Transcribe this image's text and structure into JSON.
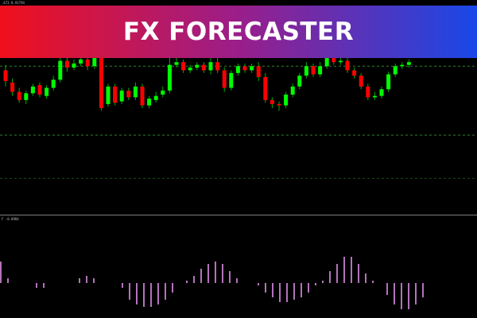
{
  "banner": {
    "title": "FX FORECASTER",
    "gradient_start": "#f0101c",
    "gradient_mid": "#9a1e8a",
    "gradient_end": "#1848e8"
  },
  "chart": {
    "header": ".673 0.91794",
    "bull_color": "#00ff00",
    "bear_color": "#ff0000",
    "wick_color": "#00b000",
    "level_lines_color": "#3aa63a",
    "candles": [
      {
        "o": 28,
        "c": 20,
        "h": 32,
        "l": 16
      },
      {
        "o": 19,
        "c": 12,
        "h": 22,
        "l": 9
      },
      {
        "o": 12,
        "c": 6,
        "h": 15,
        "l": 4
      },
      {
        "o": 6,
        "c": 11,
        "h": 13,
        "l": 3
      },
      {
        "o": 11,
        "c": 16,
        "h": 18,
        "l": 9
      },
      {
        "o": 17,
        "c": 10,
        "h": 19,
        "l": 8
      },
      {
        "o": 9,
        "c": 15,
        "h": 17,
        "l": 7
      },
      {
        "o": 15,
        "c": 21,
        "h": 24,
        "l": 13
      },
      {
        "o": 21,
        "c": 35,
        "h": 40,
        "l": 19
      },
      {
        "o": 35,
        "c": 30,
        "h": 38,
        "l": 27
      },
      {
        "o": 30,
        "c": 33,
        "h": 36,
        "l": 28
      },
      {
        "o": 33,
        "c": 36,
        "h": 38,
        "l": 31
      },
      {
        "o": 36,
        "c": 31,
        "h": 37,
        "l": 28
      },
      {
        "o": 31,
        "c": 37,
        "h": 40,
        "l": 29
      },
      {
        "o": 37,
        "c": 0,
        "h": 40,
        "l": -2
      },
      {
        "o": 3,
        "c": 16,
        "h": 18,
        "l": 1
      },
      {
        "o": 16,
        "c": 4,
        "h": 18,
        "l": 2
      },
      {
        "o": 5,
        "c": 13,
        "h": 15,
        "l": 3
      },
      {
        "o": 13,
        "c": 8,
        "h": 15,
        "l": 6
      },
      {
        "o": 8,
        "c": 16,
        "h": 19,
        "l": 6
      },
      {
        "o": 16,
        "c": 2,
        "h": 18,
        "l": 0
      },
      {
        "o": 2,
        "c": 7,
        "h": 9,
        "l": 0
      },
      {
        "o": 6,
        "c": 9,
        "h": 12,
        "l": 4
      },
      {
        "o": 10,
        "c": 13,
        "h": 16,
        "l": 8
      },
      {
        "o": 13,
        "c": 32,
        "h": 37,
        "l": 11
      },
      {
        "o": 32,
        "c": 34,
        "h": 38,
        "l": 30
      },
      {
        "o": 34,
        "c": 28,
        "h": 36,
        "l": 26
      },
      {
        "o": 28,
        "c": 30,
        "h": 32,
        "l": 26
      },
      {
        "o": 30,
        "c": 32,
        "h": 34,
        "l": 28
      },
      {
        "o": 32,
        "c": 28,
        "h": 34,
        "l": 26
      },
      {
        "o": 28,
        "c": 34,
        "h": 37,
        "l": 25
      },
      {
        "o": 34,
        "c": 28,
        "h": 37,
        "l": 26
      },
      {
        "o": 28,
        "c": 15,
        "h": 30,
        "l": 12
      },
      {
        "o": 15,
        "c": 26,
        "h": 28,
        "l": 13
      },
      {
        "o": 26,
        "c": 31,
        "h": 33,
        "l": 24
      },
      {
        "o": 31,
        "c": 28,
        "h": 33,
        "l": 26
      },
      {
        "o": 28,
        "c": 31,
        "h": 33,
        "l": 26
      },
      {
        "o": 31,
        "c": 23,
        "h": 34,
        "l": 20
      },
      {
        "o": 23,
        "c": 6,
        "h": 26,
        "l": 4
      },
      {
        "o": 6,
        "c": 3,
        "h": 8,
        "l": 0
      },
      {
        "o": 3,
        "c": 2,
        "h": 5,
        "l": -2
      },
      {
        "o": 2,
        "c": 10,
        "h": 12,
        "l": 0
      },
      {
        "o": 10,
        "c": 16,
        "h": 18,
        "l": 8
      },
      {
        "o": 16,
        "c": 24,
        "h": 26,
        "l": 14
      },
      {
        "o": 24,
        "c": 31,
        "h": 34,
        "l": 22
      },
      {
        "o": 31,
        "c": 25,
        "h": 33,
        "l": 23
      },
      {
        "o": 25,
        "c": 31,
        "h": 34,
        "l": 23
      },
      {
        "o": 31,
        "c": 37,
        "h": 40,
        "l": 29
      },
      {
        "o": 37,
        "c": 34,
        "h": 40,
        "l": 32
      },
      {
        "o": 34,
        "c": 35,
        "h": 38,
        "l": 32
      },
      {
        "o": 35,
        "c": 28,
        "h": 37,
        "l": 26
      },
      {
        "o": 28,
        "c": 24,
        "h": 30,
        "l": 22
      },
      {
        "o": 24,
        "c": 16,
        "h": 26,
        "l": 14
      },
      {
        "o": 16,
        "c": 8,
        "h": 18,
        "l": 6
      },
      {
        "o": 8,
        "c": 9,
        "h": 12,
        "l": 6
      },
      {
        "o": 9,
        "c": 14,
        "h": 16,
        "l": 7
      },
      {
        "o": 14,
        "c": 25,
        "h": 27,
        "l": 12
      },
      {
        "o": 25,
        "c": 31,
        "h": 33,
        "l": 23
      },
      {
        "o": 31,
        "c": 32,
        "h": 34,
        "l": 29
      },
      {
        "o": 32,
        "c": 34,
        "h": 36,
        "l": 30
      }
    ],
    "levels": [
      31,
      -20,
      -52
    ],
    "y_domain": [
      -70,
      80
    ]
  },
  "indicator": {
    "header": "F -0.0984",
    "bar_color": "#e090e8",
    "values": [
      0.9,
      0.2,
      0,
      0,
      0,
      -0.2,
      -0.2,
      0,
      0,
      0,
      0,
      0.2,
      0.3,
      0.2,
      0,
      0,
      0,
      -0.2,
      -0.7,
      -0.9,
      -1.0,
      -1.0,
      -0.9,
      -0.7,
      -0.4,
      0,
      0.1,
      0.3,
      0.6,
      0.8,
      0.9,
      0.8,
      0.5,
      0.2,
      0,
      0,
      -0.1,
      -0.4,
      -0.6,
      -0.8,
      -0.8,
      -0.7,
      -0.6,
      -0.4,
      -0.1,
      0.1,
      0.5,
      0.8,
      1.1,
      1.1,
      0.8,
      0.4,
      0.1,
      0,
      -0.5,
      -0.9,
      -1.1,
      -1.1,
      -0.9,
      -0.6,
      0
    ]
  }
}
